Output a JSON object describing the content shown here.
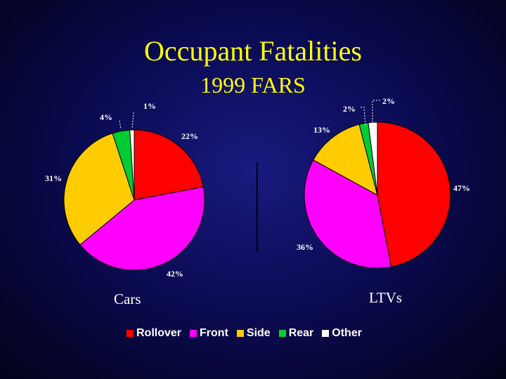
{
  "title": "Occupant Fatalities",
  "subtitle": "1999 FARS",
  "chart_data": [
    {
      "type": "pie",
      "caption": "Cars",
      "categories": [
        "Rollover",
        "Front",
        "Side",
        "Rear",
        "Other"
      ],
      "values": [
        22,
        42,
        31,
        4,
        1
      ],
      "labels": [
        "22%",
        "42%",
        "31%",
        "4%",
        "1%"
      ],
      "colors": [
        "#ff0000",
        "#ff00ff",
        "#ffcc00",
        "#00cc33",
        "#ffffff"
      ]
    },
    {
      "type": "pie",
      "caption": "LTVs",
      "categories": [
        "Rollover",
        "Front",
        "Side",
        "Rear",
        "Other"
      ],
      "values": [
        47,
        36,
        13,
        2,
        2
      ],
      "labels": [
        "47%",
        "36%",
        "13%",
        "2%",
        "2%"
      ],
      "colors": [
        "#ff0000",
        "#ff00ff",
        "#ffcc00",
        "#00cc33",
        "#ffffff"
      ]
    }
  ],
  "legend": {
    "placement": "bottom",
    "items": [
      {
        "label": "Rollover",
        "color": "#ff0000"
      },
      {
        "label": "Front",
        "color": "#ff00ff"
      },
      {
        "label": "Side",
        "color": "#ffcc00"
      },
      {
        "label": "Rear",
        "color": "#00cc33"
      },
      {
        "label": "Other",
        "color": "#ffffff"
      }
    ]
  }
}
